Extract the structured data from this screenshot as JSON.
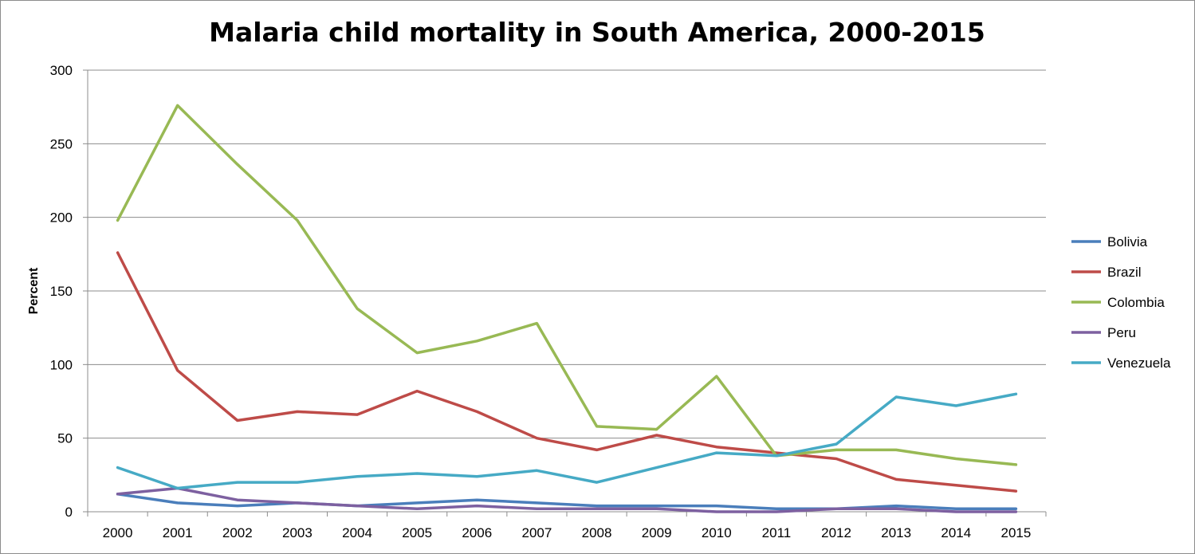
{
  "chart_data": {
    "type": "line",
    "title": "Malaria child mortality in South America, 2000-2015",
    "xlabel": "",
    "ylabel": "Percent",
    "ylim": [
      0,
      300
    ],
    "yticks": [
      0,
      50,
      100,
      150,
      200,
      250,
      300
    ],
    "grid": true,
    "legend_position": "right",
    "categories": [
      "2000",
      "2001",
      "2002",
      "2003",
      "2004",
      "2005",
      "2006",
      "2007",
      "2008",
      "2009",
      "2010",
      "2011",
      "2012",
      "2013",
      "2014",
      "2015"
    ],
    "series": [
      {
        "name": "Bolivia",
        "color": "#4a7ebb",
        "values": [
          12,
          6,
          4,
          6,
          4,
          6,
          8,
          6,
          4,
          4,
          4,
          2,
          2,
          4,
          2,
          2
        ]
      },
      {
        "name": "Brazil",
        "color": "#be4b48",
        "values": [
          176,
          96,
          62,
          68,
          66,
          82,
          68,
          50,
          42,
          52,
          44,
          40,
          36,
          22,
          18,
          14
        ]
      },
      {
        "name": "Colombia",
        "color": "#98b954",
        "values": [
          198,
          276,
          236,
          198,
          138,
          108,
          116,
          128,
          58,
          56,
          92,
          38,
          42,
          42,
          36,
          32
        ]
      },
      {
        "name": "Peru",
        "color": "#7d60a0",
        "values": [
          12,
          16,
          8,
          6,
          4,
          2,
          4,
          2,
          2,
          2,
          0,
          0,
          2,
          2,
          0,
          0
        ]
      },
      {
        "name": "Venezuela",
        "color": "#46aac5",
        "values": [
          30,
          16,
          20,
          20,
          24,
          26,
          24,
          28,
          20,
          30,
          40,
          38,
          46,
          78,
          72,
          80
        ]
      }
    ]
  }
}
